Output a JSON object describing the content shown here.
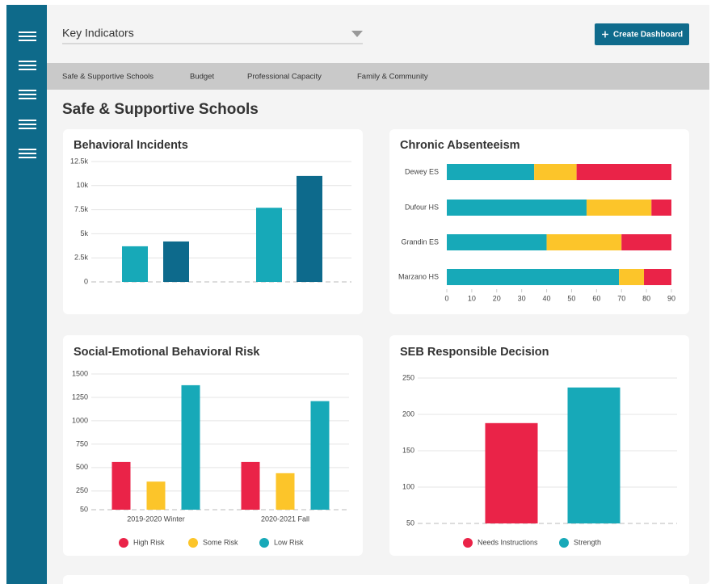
{
  "header": {
    "dropdown": "Key Indicators",
    "button": "Create Dashboard"
  },
  "tabs": [
    "Safe & Supportive Schools",
    "Budget",
    "Professional Capacity",
    "Family & Community"
  ],
  "section_title": "Safe & Supportive Schools",
  "chart_data": [
    {
      "type": "bar",
      "title": "Behavioral Incidents",
      "categories": [
        null,
        null,
        null,
        null
      ],
      "values": [
        3700,
        4200,
        7700,
        11000
      ],
      "colors": [
        "#17a9b8",
        "#0d6a8c",
        "#17a9b8",
        "#0d6a8c"
      ],
      "ylim": [
        0,
        12500
      ],
      "yticks": [
        0,
        {
          "value": 2500,
          "label": "2.5k"
        },
        {
          "value": 5000,
          "label": "5k"
        },
        {
          "value": 7500,
          "label": "7.5k"
        },
        {
          "value": 10000,
          "label": "10k"
        },
        {
          "value": 12500,
          "label": "12.5k"
        }
      ],
      "grid": true
    },
    {
      "type": "stacked_bar",
      "title": "Chronic Absenteeism",
      "categories": [
        "Dewey ES",
        "Dufour HS",
        "Grandin ES",
        "Marzano HS"
      ],
      "series": [
        {
          "color": "#17a9b8",
          "values": [
            35,
            56,
            40,
            69
          ]
        },
        {
          "color": "#fcc52a",
          "values": [
            17,
            26,
            30,
            10
          ]
        },
        {
          "color": "#ea2348",
          "values": [
            38,
            8,
            20,
            11
          ]
        }
      ],
      "xlim": [
        0,
        90
      ],
      "xticks": [
        0,
        10,
        20,
        30,
        40,
        50,
        60,
        70,
        80,
        90
      ]
    },
    {
      "type": "grouped_bar",
      "title": "Social-Emotional Behavioral Risk",
      "categories": [
        "2019-2020 Winter",
        "2020-2021 Fall"
      ],
      "series": [
        {
          "name": "High Risk",
          "color": "#ea2348",
          "values": [
            560,
            560
          ]
        },
        {
          "name": "Some Risk",
          "color": "#fcc52a",
          "values": [
            350,
            440
          ]
        },
        {
          "name": "Low Risk",
          "color": "#17a9b8",
          "values": [
            1380,
            1210
          ]
        }
      ],
      "ylim": [
        50,
        1500
      ],
      "yticks": [
        50,
        250,
        500,
        750,
        1000,
        1250,
        1500
      ],
      "grid": true
    },
    {
      "type": "bar",
      "title": "SEB Responsible Decision",
      "categories": [
        "Needs Instructions",
        "Strength"
      ],
      "values": [
        188,
        237
      ],
      "colors": [
        "#ea2348",
        "#17a9b8"
      ],
      "ylim": [
        50,
        250
      ],
      "yticks": [
        50,
        100,
        150,
        200,
        250
      ],
      "grid": true,
      "legend": "bottom"
    }
  ]
}
